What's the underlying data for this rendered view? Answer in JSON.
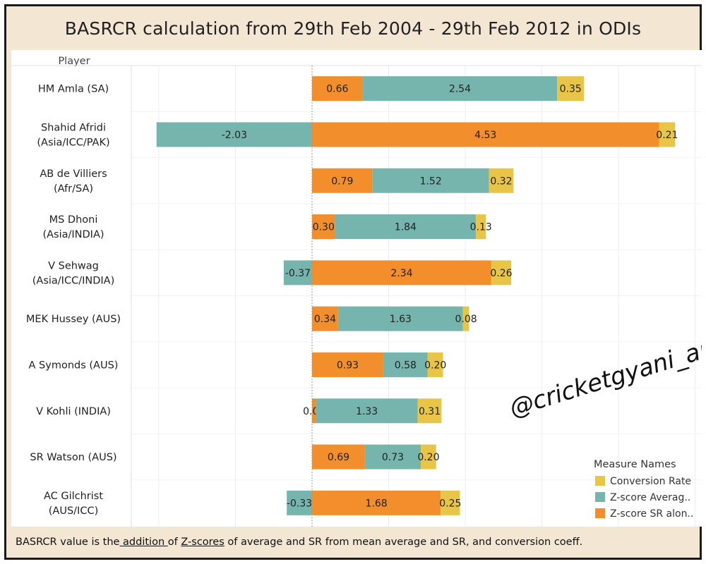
{
  "title": "BASRCR calculation from 29th Feb 2004 - 29th Feb 2012 in ODIs",
  "watermark": "@cricketgyani_an",
  "footer": {
    "part1": "BASRCR value is the",
    "part2": " addition ",
    "part3": "of ",
    "part4": "Z-scores",
    "part5": " of average and SR from mean average and SR, and conversion coeff."
  },
  "colors": {
    "conversion": "#e8c547",
    "avg": "#76b5ad",
    "sr": "#f28e2b",
    "frame_bg": "#f3e6d3"
  },
  "chart_data": {
    "type": "bar",
    "orientation": "horizontal",
    "stacked": true,
    "title": "BASRCR calculation from 29th Feb 2004 - 29th Feb 2012 in ODIs",
    "ylabel": "Player",
    "xlabel": "",
    "xlim": [
      -3.1,
      5.2
    ],
    "grid": true,
    "legend_position": "bottom-right",
    "legend_title": "Measure Names",
    "categories": [
      "HM Amla (SA)",
      "Shahid Afridi (Asia/ICC/PAK)",
      "AB de Villiers (Afr/SA)",
      "MS Dhoni (Asia/INDIA)",
      "V Sehwag (Asia/ICC/INDIA)",
      "MEK Hussey (AUS)",
      "A Symonds (AUS)",
      "V Kohli (INDIA)",
      "SR Watson (AUS)",
      "AC Gilchrist (AUS/ICC)"
    ],
    "category_lines": [
      [
        "HM Amla (SA)"
      ],
      [
        "Shahid Afridi",
        "(Asia/ICC/PAK)"
      ],
      [
        "AB de Villiers",
        "(Afr/SA)"
      ],
      [
        "MS Dhoni",
        "(Asia/INDIA)"
      ],
      [
        "V Sehwag",
        "(Asia/ICC/INDIA)"
      ],
      [
        "MEK Hussey (AUS)"
      ],
      [
        "A Symonds (AUS)"
      ],
      [
        "V Kohli (INDIA)"
      ],
      [
        "SR Watson (AUS)"
      ],
      [
        "AC Gilchrist",
        "(AUS/ICC)"
      ]
    ],
    "series": [
      {
        "name": "Z-score SR alon..",
        "color": "#f28e2b",
        "values": [
          0.66,
          4.53,
          0.79,
          0.3,
          2.34,
          0.34,
          0.93,
          0.05,
          0.69,
          1.68
        ],
        "labels": [
          "0.66",
          "4.53",
          "0.79",
          "0.30",
          "2.34",
          "0.34",
          "0.93",
          "0.05",
          "0.69",
          "1.68"
        ]
      },
      {
        "name": "Z-score Averag..",
        "color": "#76b5ad",
        "values": [
          2.54,
          -2.03,
          1.52,
          1.84,
          -0.37,
          1.63,
          0.58,
          1.33,
          0.73,
          -0.33
        ],
        "labels": [
          "2.54",
          "-2.03",
          "1.52",
          "1.84",
          "-0.37",
          "1.63",
          "0.58",
          "1.33",
          "0.73",
          "-0.33"
        ]
      },
      {
        "name": "Conversion Rate",
        "color": "#e8c547",
        "values": [
          0.35,
          0.21,
          0.32,
          0.13,
          0.26,
          0.08,
          0.2,
          0.31,
          0.2,
          0.25
        ],
        "labels": [
          "0.35",
          "0.21",
          "0.32",
          "0.13",
          "0.26",
          "0.08",
          "0.20",
          "0.31",
          "0.20",
          "0.25"
        ]
      }
    ],
    "legend_order": [
      "Conversion Rate",
      "Z-score Averag..",
      "Z-score SR alon.."
    ]
  }
}
